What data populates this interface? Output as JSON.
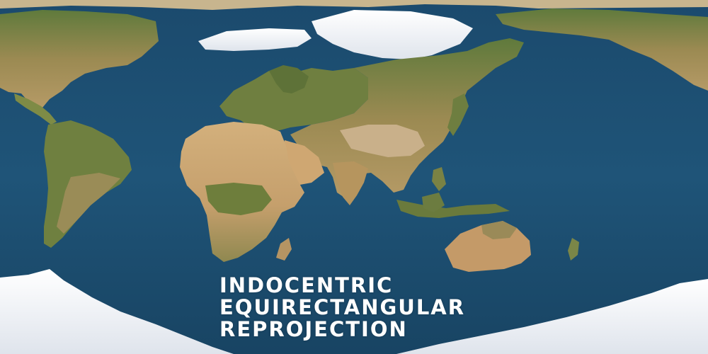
{
  "title": {
    "lines": [
      "INDOCENTRIC",
      "EQUIRECTANGULAR",
      "REPROJECTION"
    ]
  },
  "colors": {
    "ocean": "#1d5074",
    "ocean_deep": "#163f5e",
    "ice": "#eef1f5",
    "land_green": "#6d7b3e",
    "land_desert": "#c9a574",
    "title_text": "#ffffff"
  }
}
